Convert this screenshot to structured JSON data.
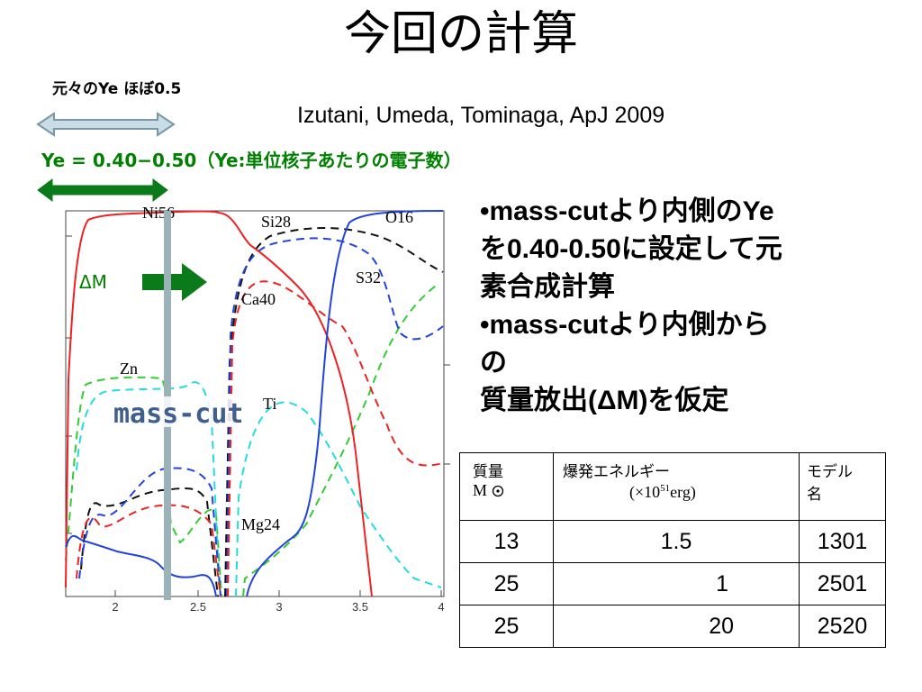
{
  "slide": {
    "title": "今回の計算",
    "original_ye_label": "元々のYe ほぼ0.5",
    "citation": "Izutani, Umeda, Tominaga, ApJ 2009",
    "ye_range_label": "Ye = 0.40−0.50（Ye:単位核子あたりの電子数）"
  },
  "plot": {
    "x_ticks": [
      "2",
      "2.5",
      "3",
      "3.5",
      "4"
    ],
    "species_labels": {
      "ni56": "Ni56",
      "si28": "Si28",
      "o16": "O16",
      "s32": "S32",
      "ca40": "Ca40",
      "zn": "Zn",
      "ti": "Ti",
      "mg24": "Mg24"
    },
    "delta_m_label": "ΔM",
    "mass_cut_label": "mass-cut"
  },
  "bullets": {
    "b1_line1": "•mass-cutより内側のYe",
    "b1_line2": "を0.40-0.50に設定して元",
    "b1_line3": "素合成計算",
    "b2_line1": "•mass-cutより内側から",
    "b2_line2": "の",
    "b2_line3": "質量放出(ΔM)を仮定"
  },
  "table": {
    "headers": {
      "mass_line1": "質量",
      "mass_line2": "M",
      "energy_line1": "爆発エネルギー",
      "energy_unit_pre": "(×10",
      "energy_unit_exp": "51",
      "energy_unit_post": "erg)",
      "model_line1": "モデル",
      "model_line2": "名"
    },
    "rows": [
      {
        "mass": "13",
        "energy": "1.5",
        "model": "1301"
      },
      {
        "mass": "25",
        "energy": "1",
        "model": "2501"
      },
      {
        "mass": "25",
        "energy": "20",
        "model": "2520"
      }
    ]
  },
  "colors": {
    "green": "#008000",
    "red": "#ee2222",
    "blue": "#2244dd",
    "black_dash": "#111111",
    "cyan": "#22dddd",
    "lime": "#33cc33",
    "masscut_bar": "#9ab2b8",
    "masscut_text": "#3f5f8f"
  }
}
